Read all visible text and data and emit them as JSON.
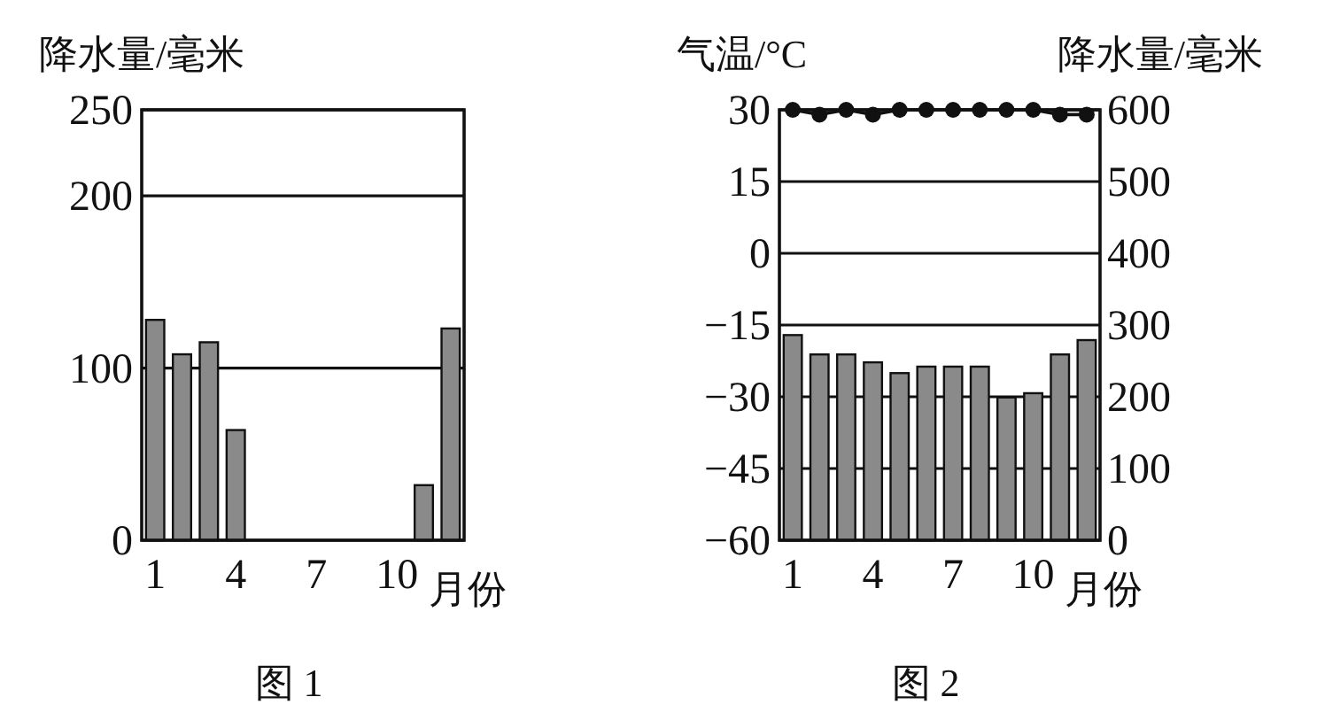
{
  "chart_data": [
    {
      "type": "bar",
      "title": "图 1",
      "ylabel": "降水量/毫米",
      "xlabel": "月份",
      "categories": [
        "1",
        null,
        null,
        "4",
        null,
        null,
        "7",
        null,
        null,
        "10",
        null,
        null
      ],
      "values": [
        128,
        108,
        115,
        64,
        0,
        0,
        0,
        0,
        0,
        0,
        32,
        123
      ],
      "color": "#8a8a8a",
      "ylim": [
        0,
        250
      ],
      "yticks": [
        0,
        100,
        200,
        250
      ],
      "grid": "y"
    },
    {
      "type": "bar",
      "title": "图 2",
      "ylabel": "气温/°C",
      "y2label": "降水量/毫米",
      "xlabel": "月份",
      "categories": [
        "1",
        null,
        null,
        "4",
        null,
        null,
        "7",
        null,
        null,
        "10",
        null,
        null
      ],
      "series": [
        {
          "type": "bar",
          "axis": "y2",
          "color": "#8a8a8a",
          "values": [
            286,
            259,
            259,
            248,
            233,
            242,
            242,
            242,
            199,
            205,
            259,
            279
          ]
        },
        {
          "type": "line",
          "axis": "y",
          "color": "#111111",
          "values": [
            30,
            29,
            30,
            29,
            30,
            30,
            30,
            30,
            30,
            30,
            29,
            29
          ]
        }
      ],
      "marker": "circle",
      "ylim": [
        -60,
        30
      ],
      "yticks": [
        -60,
        -45,
        -30,
        -15,
        0,
        15,
        30
      ],
      "y2lim": [
        0,
        600
      ],
      "y2ticks": [
        0,
        100,
        200,
        300,
        400,
        500,
        600
      ],
      "grid": "y"
    }
  ]
}
